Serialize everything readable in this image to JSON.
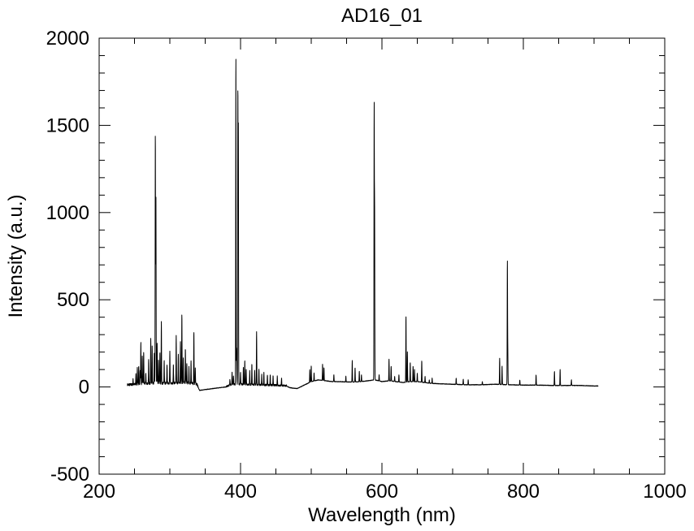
{
  "chart_data": {
    "type": "line",
    "title": "AD16_01",
    "xlabel": "Wavelength (nm)",
    "ylabel": "Intensity (a.u.)",
    "xlim": [
      200,
      1000
    ],
    "ylim": [
      -500,
      2000
    ],
    "x_ticks": [
      200,
      400,
      600,
      800,
      1000
    ],
    "y_ticks": [
      -500,
      0,
      500,
      1000,
      1500,
      2000
    ],
    "x_tick_labels": [
      "200",
      "400",
      "600",
      "800",
      "1000"
    ],
    "y_tick_labels": [
      "-500",
      "0",
      "500",
      "1000",
      "1500",
      "2000"
    ],
    "grid": false,
    "line_color": "#000000",
    "series": [
      {
        "baseline": [
          [
            240,
            10
          ],
          [
            250,
            12
          ],
          [
            260,
            15
          ],
          [
            270,
            18
          ],
          [
            280,
            20
          ],
          [
            290,
            18
          ],
          [
            300,
            20
          ],
          [
            310,
            20
          ],
          [
            320,
            22
          ],
          [
            330,
            18
          ],
          [
            338,
            15
          ],
          [
            342,
            -20
          ],
          [
            360,
            -10
          ],
          [
            380,
            0
          ],
          [
            385,
            10
          ],
          [
            395,
            15
          ],
          [
            410,
            12
          ],
          [
            430,
            10
          ],
          [
            450,
            8
          ],
          [
            465,
            5
          ],
          [
            470,
            -5
          ],
          [
            480,
            -10
          ],
          [
            490,
            10
          ],
          [
            500,
            30
          ],
          [
            510,
            40
          ],
          [
            520,
            35
          ],
          [
            530,
            30
          ],
          [
            540,
            30
          ],
          [
            550,
            28
          ],
          [
            560,
            28
          ],
          [
            570,
            30
          ],
          [
            580,
            35
          ],
          [
            590,
            40
          ],
          [
            600,
            30
          ],
          [
            610,
            35
          ],
          [
            620,
            30
          ],
          [
            630,
            25
          ],
          [
            640,
            30
          ],
          [
            650,
            30
          ],
          [
            660,
            25
          ],
          [
            670,
            20
          ],
          [
            680,
            18
          ],
          [
            700,
            15
          ],
          [
            720,
            12
          ],
          [
            740,
            12
          ],
          [
            760,
            15
          ],
          [
            780,
            12
          ],
          [
            800,
            10
          ],
          [
            820,
            10
          ],
          [
            840,
            8
          ],
          [
            860,
            8
          ],
          [
            880,
            8
          ],
          [
            900,
            5
          ],
          [
            906,
            5
          ]
        ],
        "peaks": [
          [
            248,
            40
          ],
          [
            252,
            70
          ],
          [
            254,
            110
          ],
          [
            256,
            120
          ],
          [
            258,
            90
          ],
          [
            259,
            255
          ],
          [
            261,
            180
          ],
          [
            263,
            200
          ],
          [
            266,
            80
          ],
          [
            270,
            150
          ],
          [
            273,
            280
          ],
          [
            275,
            230
          ],
          [
            278,
            200
          ],
          [
            279.5,
            1460
          ],
          [
            280.3,
            1100
          ],
          [
            282,
            250
          ],
          [
            284,
            150
          ],
          [
            286,
            200
          ],
          [
            288,
            370
          ],
          [
            292,
            150
          ],
          [
            296,
            130
          ],
          [
            300,
            200
          ],
          [
            305,
            120
          ],
          [
            309,
            290
          ],
          [
            312,
            180
          ],
          [
            315,
            260
          ],
          [
            317,
            420
          ],
          [
            319,
            170
          ],
          [
            322,
            220
          ],
          [
            324,
            130
          ],
          [
            327,
            110
          ],
          [
            330,
            150
          ],
          [
            334,
            320
          ],
          [
            336,
            100
          ],
          [
            385,
            40
          ],
          [
            388,
            80
          ],
          [
            390,
            60
          ],
          [
            393.4,
            1910
          ],
          [
            394.4,
            220
          ],
          [
            396.2,
            1720
          ],
          [
            396.9,
            1480
          ],
          [
            400,
            80
          ],
          [
            404,
            110
          ],
          [
            406,
            150
          ],
          [
            408,
            100
          ],
          [
            413,
            90
          ],
          [
            416,
            130
          ],
          [
            420,
            90
          ],
          [
            422.7,
            320
          ],
          [
            426,
            100
          ],
          [
            430,
            70
          ],
          [
            433,
            80
          ],
          [
            438,
            70
          ],
          [
            442,
            70
          ],
          [
            446,
            60
          ],
          [
            452,
            60
          ],
          [
            458,
            50
          ],
          [
            498,
            100
          ],
          [
            500,
            120
          ],
          [
            504,
            80
          ],
          [
            516,
            130
          ],
          [
            518,
            110
          ],
          [
            532,
            70
          ],
          [
            549,
            60
          ],
          [
            558,
            150
          ],
          [
            562,
            110
          ],
          [
            568,
            90
          ],
          [
            571,
            70
          ],
          [
            589.0,
            1580
          ],
          [
            589.6,
            1000
          ],
          [
            596,
            70
          ],
          [
            610,
            160
          ],
          [
            613,
            120
          ],
          [
            618,
            60
          ],
          [
            624,
            70
          ],
          [
            634,
            410
          ],
          [
            636,
            200
          ],
          [
            640,
            140
          ],
          [
            644,
            120
          ],
          [
            646,
            100
          ],
          [
            650,
            80
          ],
          [
            656.3,
            150
          ],
          [
            661,
            60
          ],
          [
            667,
            40
          ],
          [
            671,
            50
          ],
          [
            705,
            50
          ],
          [
            715,
            45
          ],
          [
            722,
            40
          ],
          [
            742,
            30
          ],
          [
            766.5,
            165
          ],
          [
            769.9,
            120
          ],
          [
            777.4,
            720
          ],
          [
            778,
            200
          ],
          [
            795,
            40
          ],
          [
            818,
            70
          ],
          [
            844,
            90
          ],
          [
            852,
            100
          ],
          [
            868,
            40
          ]
        ]
      }
    ]
  }
}
